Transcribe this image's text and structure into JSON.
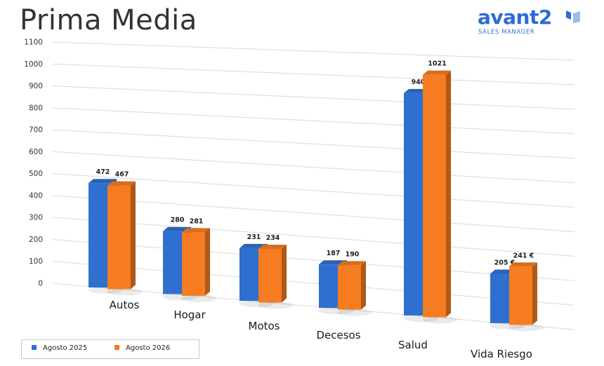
{
  "title": "Prima Media",
  "logo": {
    "text": "avant2",
    "subtitle": "SALES MANAGER",
    "color": "#2d6bd6"
  },
  "chart_data": {
    "type": "bar",
    "title": "Prima Media",
    "categories": [
      "Autos",
      "Hogar",
      "Motos",
      "Decesos",
      "Salud",
      "Vida Riesgo"
    ],
    "series": [
      {
        "name": "Agosto 2025",
        "color": "#2f6fd0",
        "values": [
          472,
          280,
          231,
          187,
          940,
          205
        ],
        "labels": [
          "472",
          "280",
          "231",
          "187",
          "940",
          "205 €"
        ]
      },
      {
        "name": "Agosto 2026",
        "color": "#f57c20",
        "values": [
          467,
          281,
          234,
          190,
          1021,
          241
        ],
        "labels": [
          "467",
          "281",
          "234",
          "190",
          "1021",
          "241 €"
        ]
      }
    ],
    "y_ticks": [
      "0",
      "100",
      "200",
      "300",
      "400",
      "500",
      "600",
      "700",
      "800",
      "900",
      "1000",
      "1100"
    ],
    "ylim": [
      0,
      1100
    ],
    "grid": true,
    "legend_position": "bottom-left",
    "style": "3d-bar"
  }
}
